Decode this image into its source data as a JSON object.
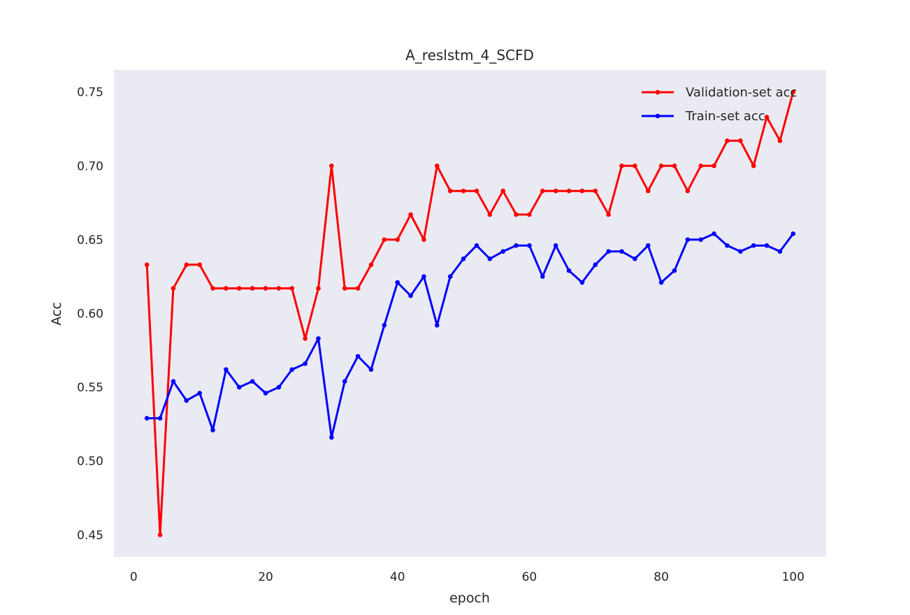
{
  "colors": {
    "plot_background": "#eaeaf2",
    "page_background": "#ffffff",
    "text": "#262626"
  },
  "chart_data": {
    "type": "line",
    "title": "A_reslstm_4_SCFD",
    "xlabel": "epoch",
    "ylabel": "Acc",
    "xlim": [
      -3,
      105
    ],
    "ylim": [
      0.435,
      0.765
    ],
    "xticks": [
      0,
      20,
      40,
      60,
      80,
      100
    ],
    "xtick_labels": [
      "0",
      "20",
      "40",
      "60",
      "80",
      "100"
    ],
    "yticks": [
      0.45,
      0.5,
      0.55,
      0.6,
      0.65,
      0.7,
      0.75
    ],
    "ytick_labels": [
      "0.45",
      "0.50",
      "0.55",
      "0.60",
      "0.65",
      "0.70",
      "0.75"
    ],
    "grid": false,
    "legend_position": "top-right",
    "x": [
      2,
      4,
      6,
      8,
      10,
      12,
      14,
      16,
      18,
      20,
      22,
      24,
      26,
      28,
      30,
      32,
      34,
      36,
      38,
      40,
      42,
      44,
      46,
      48,
      50,
      52,
      54,
      56,
      58,
      60,
      62,
      64,
      66,
      68,
      70,
      72,
      74,
      76,
      78,
      80,
      82,
      84,
      86,
      88,
      90,
      92,
      94,
      96,
      98,
      100
    ],
    "series": [
      {
        "name": "Validation-set acc",
        "color": "#ff0000",
        "values": [
          0.633,
          0.45,
          0.617,
          0.633,
          0.633,
          0.617,
          0.617,
          0.617,
          0.617,
          0.617,
          0.617,
          0.617,
          0.583,
          0.617,
          0.7,
          0.617,
          0.617,
          0.633,
          0.65,
          0.65,
          0.667,
          0.65,
          0.7,
          0.683,
          0.683,
          0.683,
          0.667,
          0.683,
          0.667,
          0.667,
          0.683,
          0.683,
          0.683,
          0.683,
          0.683,
          0.667,
          0.7,
          0.7,
          0.683,
          0.7,
          0.7,
          0.683,
          0.7,
          0.7,
          0.717,
          0.717,
          0.7,
          0.733,
          0.717,
          0.75
        ]
      },
      {
        "name": "Train-set acc",
        "color": "#0000ff",
        "values": [
          0.529,
          0.529,
          0.554,
          0.541,
          0.546,
          0.521,
          0.562,
          0.55,
          0.554,
          0.546,
          0.55,
          0.562,
          0.566,
          0.583,
          0.516,
          0.554,
          0.571,
          0.562,
          0.592,
          0.621,
          0.612,
          0.625,
          0.592,
          0.625,
          0.637,
          0.646,
          0.637,
          0.642,
          0.646,
          0.646,
          0.625,
          0.646,
          0.629,
          0.621,
          0.633,
          0.642,
          0.642,
          0.637,
          0.646,
          0.621,
          0.629,
          0.65,
          0.65,
          0.654,
          0.646,
          0.642,
          0.646,
          0.646,
          0.642,
          0.654
        ]
      }
    ]
  }
}
